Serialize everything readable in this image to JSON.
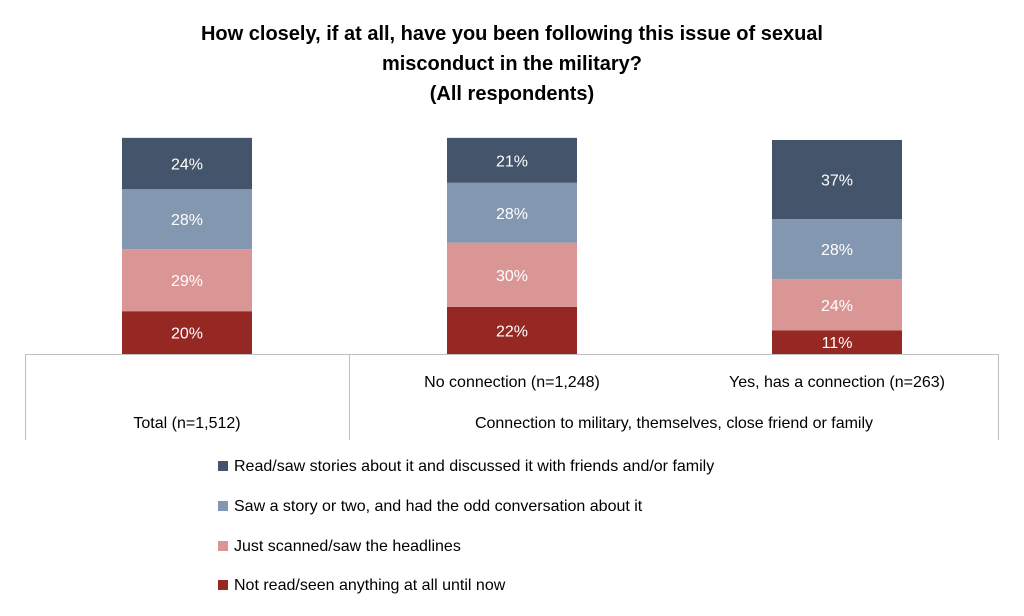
{
  "chart_data": {
    "type": "bar",
    "stacked": true,
    "title": [
      "How closely, if at all, have you been following this issue of sexual",
      "misconduct in the military?",
      "(All respondents)"
    ],
    "categories": [
      "Total (n=1,512)",
      "No connection (n=1,248)",
      "Yes, has a connection (n=263)"
    ],
    "category_group": {
      "label": "Connection to military, themselves, close friend or family",
      "members": [
        "No connection (n=1,248)",
        "Yes, has a connection (n=263)"
      ]
    },
    "series": [
      {
        "name": "Read/saw stories about it and discussed it with friends and/or family",
        "values": [
          24,
          21,
          37
        ],
        "color": "#44546A"
      },
      {
        "name": "Saw a story or two, and had the odd conversation about it",
        "values": [
          28,
          28,
          28
        ],
        "color": "#8497B0"
      },
      {
        "name": "Just scanned/saw the headlines",
        "values": [
          29,
          30,
          24
        ],
        "color": "#D99694"
      },
      {
        "name": "Not read/seen anything at all until now",
        "values": [
          20,
          22,
          11
        ],
        "color": "#962824"
      }
    ],
    "value_suffix": "%",
    "legend_position": "bottom"
  }
}
